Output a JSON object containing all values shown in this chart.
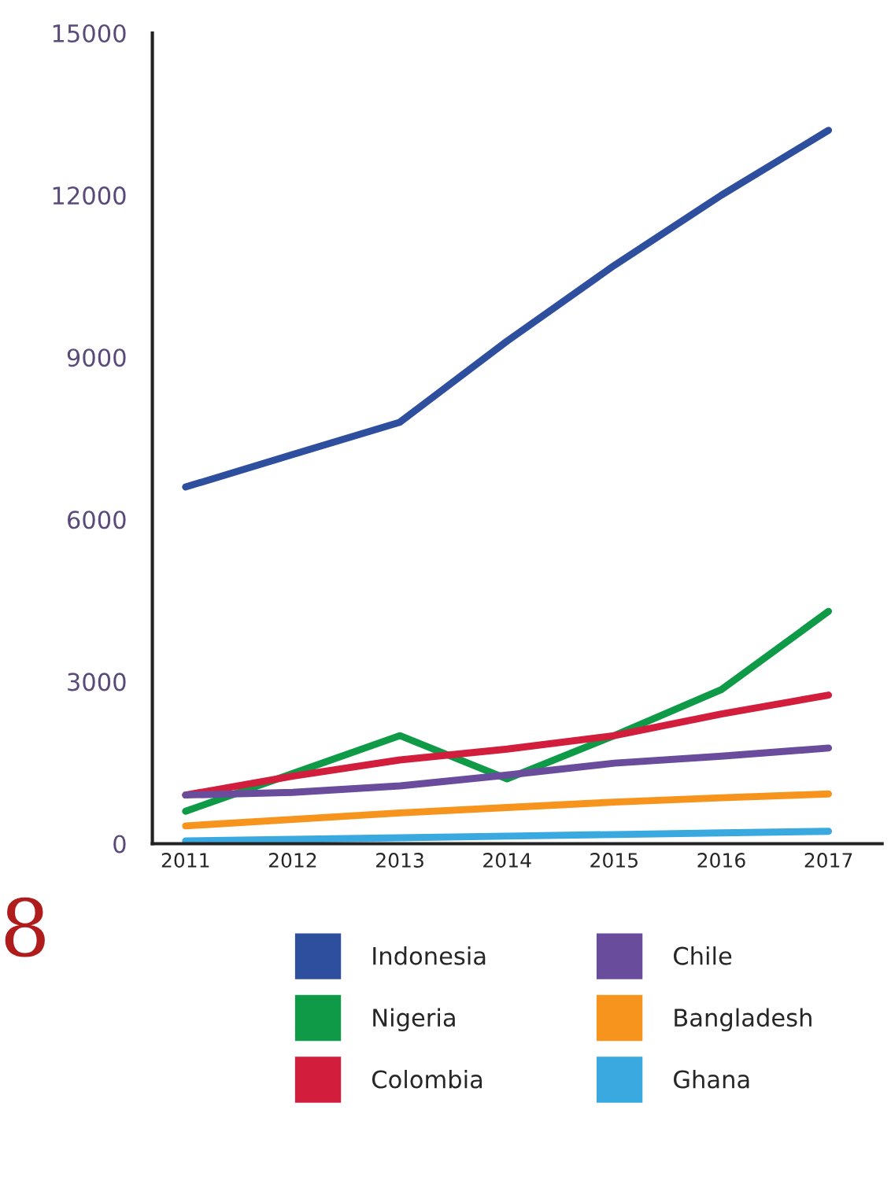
{
  "chart_data": {
    "type": "line",
    "categories": [
      "2011",
      "2012",
      "2013",
      "2014",
      "2015",
      "2016",
      "2017"
    ],
    "series": [
      {
        "name": "Indonesia",
        "color": "#2e4e9e",
        "values": [
          6600,
          7200,
          7800,
          9300,
          10700,
          12000,
          13200
        ]
      },
      {
        "name": "Nigeria",
        "color": "#0f9a48",
        "values": [
          600,
          1300,
          2000,
          1200,
          2000,
          2850,
          4300
        ]
      },
      {
        "name": "Colombia",
        "color": "#d21e3c",
        "values": [
          900,
          1250,
          1550,
          1750,
          2000,
          2400,
          2750
        ]
      },
      {
        "name": "Chile",
        "color": "#6a4c9c",
        "values": [
          900,
          950,
          1070,
          1270,
          1490,
          1620,
          1770
        ]
      },
      {
        "name": "Bangladesh",
        "color": "#f7941d",
        "values": [
          330,
          450,
          570,
          670,
          770,
          850,
          920
        ]
      },
      {
        "name": "Ghana",
        "color": "#3aa9e0",
        "values": [
          50,
          80,
          110,
          140,
          170,
          200,
          230
        ]
      }
    ],
    "ylim": [
      0,
      15000
    ],
    "yticks": [
      0,
      3000,
      6000,
      9000,
      12000,
      15000
    ],
    "grid": false,
    "legend": "bottom",
    "marker": "none",
    "line_style": "solid",
    "annotations": [
      "8"
    ]
  }
}
